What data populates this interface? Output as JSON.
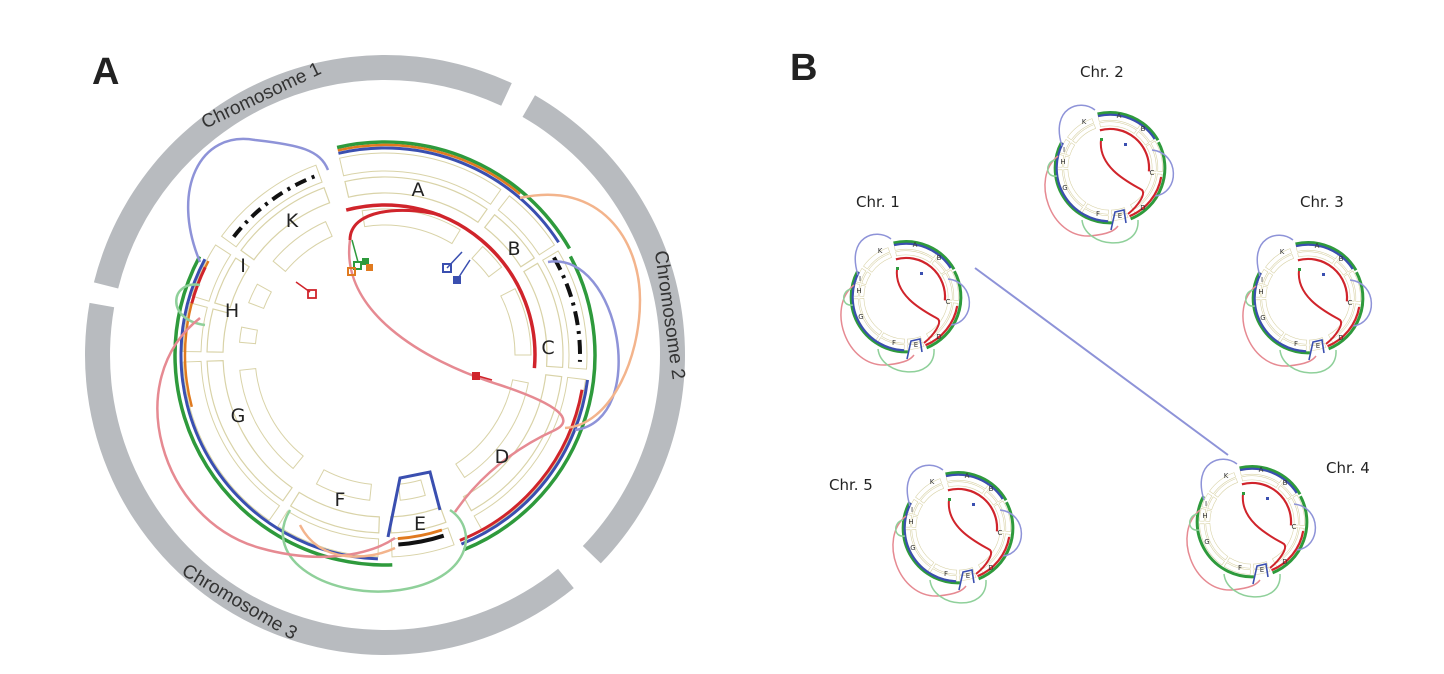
{
  "panelA": {
    "letter": "A",
    "chromosomes": [
      {
        "label": "Chromosome 1",
        "start": -76,
        "end": 25
      },
      {
        "label": "Chromosome 2",
        "start": 30,
        "end": 134
      },
      {
        "label": "Chromosome 3",
        "start": 141,
        "end": 280
      }
    ],
    "segments": [
      {
        "label": "A",
        "start": -13,
        "end": 35
      },
      {
        "label": "B",
        "start": 38,
        "end": 57
      },
      {
        "label": "C",
        "start": 59,
        "end": 94
      },
      {
        "label": "D",
        "start": 97,
        "end": 151
      },
      {
        "label": "E",
        "start": 160,
        "end": 178
      },
      {
        "label": "F",
        "start": 182,
        "end": 212
      },
      {
        "label": "G",
        "start": 215,
        "end": 268
      },
      {
        "label": "H",
        "start": 271,
        "end": 285
      },
      {
        "label": "I",
        "start": 287,
        "end": 303
      },
      {
        "label": "K",
        "start": 306,
        "end": 340
      }
    ],
    "colors": {
      "red": "#d0242b",
      "blue": "#3a4fb0",
      "green": "#2e9a3c",
      "orange": "#e07a1f",
      "black": "#111111",
      "gray": "#b8bbbf",
      "pink": "#e68a92",
      "lightblue": "#8e93d8",
      "lightgreen": "#8fd09a",
      "peach": "#f3b48c",
      "tan": "#d9d3a8"
    }
  },
  "panelB": {
    "letter": "B",
    "minis": [
      {
        "title": "Chr. 1"
      },
      {
        "title": "Chr. 2"
      },
      {
        "title": "Chr. 3"
      },
      {
        "title": "Chr. 4"
      },
      {
        "title": "Chr. 5"
      }
    ]
  }
}
